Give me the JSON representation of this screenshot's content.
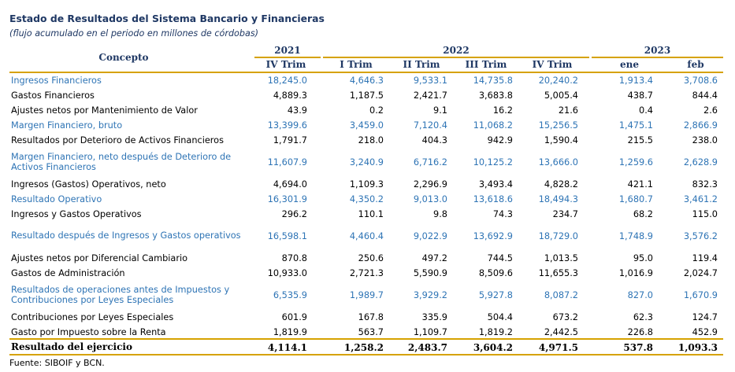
{
  "title": "Estado de Resultados del Sistema Bancario y Financieras",
  "subtitle": "(flujo acumulado en el periodo en millones de córdobas)",
  "header": {
    "concept_label": "Concepto",
    "years": [
      "2021",
      "2022",
      "2023"
    ],
    "columns": [
      "IV Trim",
      "I Trim",
      "II Trim",
      "III Trim",
      "IV Trim",
      "ene",
      "feb"
    ]
  },
  "rows": [
    {
      "label": "Ingresos Financieros",
      "style": "blue",
      "values": [
        "18,245.0",
        "4,646.3",
        "9,533.1",
        "14,735.8",
        "20,240.2",
        "1,913.4",
        "3,708.6"
      ]
    },
    {
      "label": "Gastos Financieros",
      "style": "plain",
      "values": [
        "4,889.3",
        "1,187.5",
        "2,421.7",
        "3,683.8",
        "5,005.4",
        "438.7",
        "844.4"
      ]
    },
    {
      "label": "Ajustes netos por Mantenimiento de Valor",
      "style": "plain",
      "values": [
        "43.9",
        "0.2",
        "9.1",
        "16.2",
        "21.6",
        "0.4",
        "2.6"
      ]
    },
    {
      "label": "Margen Financiero, bruto",
      "style": "blue",
      "values": [
        "13,399.6",
        "3,459.0",
        "7,120.4",
        "11,068.2",
        "15,256.5",
        "1,475.1",
        "2,866.9"
      ]
    },
    {
      "label": "Resultados por Deterioro de Activos Financieros",
      "style": "plain",
      "values": [
        "1,791.7",
        "218.0",
        "404.3",
        "942.9",
        "1,590.4",
        "215.5",
        "238.0"
      ]
    },
    {
      "label": "Margen Financiero, neto después de Deterioro de Activos Financieros",
      "style": "blue",
      "values": [
        "11,607.9",
        "3,240.9",
        "6,716.2",
        "10,125.2",
        "13,666.0",
        "1,259.6",
        "2,628.9"
      ]
    },
    {
      "label": "Ingresos (Gastos) Operativos, neto",
      "style": "plain",
      "values": [
        "4,694.0",
        "1,109.3",
        "2,296.9",
        "3,493.4",
        "4,828.2",
        "421.1",
        "832.3"
      ]
    },
    {
      "label": "Resultado Operativo",
      "style": "blue",
      "values": [
        "16,301.9",
        "4,350.2",
        "9,013.0",
        "13,618.6",
        "18,494.3",
        "1,680.7",
        "3,461.2"
      ]
    },
    {
      "label": "Ingresos y Gastos Operativos",
      "style": "plain",
      "values": [
        "296.2",
        "110.1",
        "9.8",
        "74.3",
        "234.7",
        "68.2",
        "115.0"
      ]
    },
    {
      "label": "Resultado después de Ingresos y Gastos operativos",
      "style": "blue",
      "values": [
        "16,598.1",
        "4,460.4",
        "9,022.9",
        "13,692.9",
        "18,729.0",
        "1,748.9",
        "3,576.2"
      ]
    },
    {
      "label": "Ajustes netos por Diferencial Cambiario",
      "style": "plain",
      "values": [
        "870.8",
        "250.6",
        "497.2",
        "744.5",
        "1,013.5",
        "95.0",
        "119.4"
      ]
    },
    {
      "label": "Gastos de Administración",
      "style": "plain",
      "values": [
        "10,933.0",
        "2,721.3",
        "5,590.9",
        "8,509.6",
        "11,655.3",
        "1,016.9",
        "2,024.7"
      ]
    },
    {
      "label": "Resultados de operaciones antes de Impuestos y Contribuciones por Leyes Especiales",
      "style": "blue",
      "values": [
        "6,535.9",
        "1,989.7",
        "3,929.2",
        "5,927.8",
        "8,087.2",
        "827.0",
        "1,670.9"
      ]
    },
    {
      "label": "Contribuciones por Leyes Especiales",
      "style": "plain",
      "values": [
        "601.9",
        "167.8",
        "335.9",
        "504.4",
        "673.2",
        "62.3",
        "124.7"
      ]
    },
    {
      "label": "Gasto por Impuesto sobre la Renta",
      "style": "plain",
      "values": [
        "1,819.9",
        "563.7",
        "1,109.7",
        "1,819.2",
        "2,442.5",
        "226.8",
        "452.9"
      ]
    },
    {
      "label": "Resultado del ejercicio",
      "style": "total",
      "values": [
        "4,114.1",
        "1,258.2",
        "2,483.7",
        "3,604.2",
        "4,971.5",
        "537.8",
        "1,093.3"
      ]
    }
  ],
  "source": "Fuente: SIBOIF y BCN."
}
